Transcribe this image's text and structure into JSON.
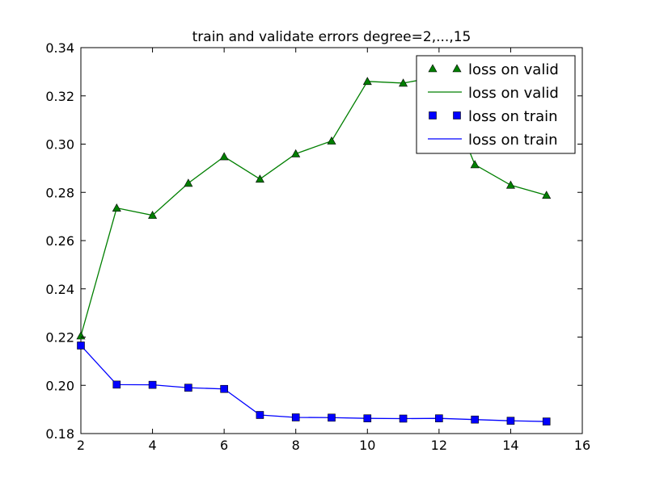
{
  "chart_data": {
    "type": "line",
    "title": "train and validate errors degree=2,...,15",
    "xlabel": "",
    "ylabel": "",
    "xlim": [
      2,
      16
    ],
    "ylim": [
      0.18,
      0.34
    ],
    "x_ticks": [
      "2",
      "4",
      "6",
      "8",
      "10",
      "12",
      "14",
      "16"
    ],
    "y_ticks": [
      "0.18",
      "0.20",
      "0.22",
      "0.24",
      "0.26",
      "0.28",
      "0.30",
      "0.32",
      "0.34"
    ],
    "grid": false,
    "legend_position": "top-right",
    "x": [
      2,
      3,
      4,
      5,
      6,
      7,
      8,
      9,
      10,
      11,
      12,
      13,
      14,
      15
    ],
    "series": [
      {
        "name": "loss on valid",
        "color": "#007f00",
        "marker": "triangle",
        "values": [
          0.2205,
          0.2735,
          0.2705,
          0.2838,
          0.2948,
          0.2855,
          0.296,
          0.3013,
          0.326,
          0.3253,
          0.328,
          0.2915,
          0.283,
          0.2788
        ]
      },
      {
        "name": "loss on train",
        "color": "#0000ff",
        "marker": "square",
        "values": [
          0.2165,
          0.2003,
          0.2002,
          0.199,
          0.1985,
          0.1877,
          0.1867,
          0.1866,
          0.1863,
          0.1862,
          0.1863,
          0.1858,
          0.1853,
          0.185
        ]
      }
    ],
    "legend": [
      {
        "label": "loss on valid",
        "kind": "marker",
        "series": 0
      },
      {
        "label": "loss on valid",
        "kind": "line",
        "series": 0
      },
      {
        "label": "loss on train",
        "kind": "marker",
        "series": 1
      },
      {
        "label": "loss on train",
        "kind": "line",
        "series": 1
      }
    ]
  }
}
